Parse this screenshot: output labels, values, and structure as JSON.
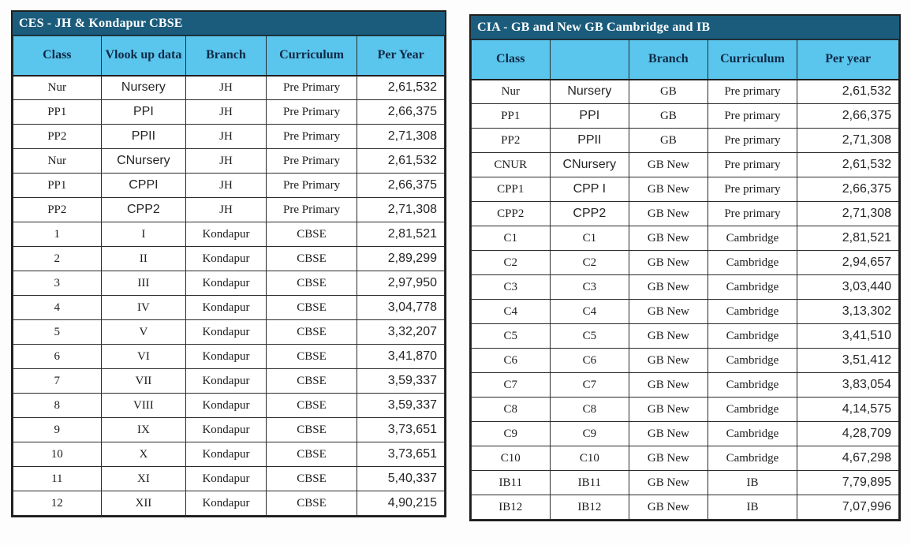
{
  "colors": {
    "title_bar_bg": "#1B5C7C",
    "title_text": "#FFFFFF",
    "header_bg": "#5BC6ED",
    "header_text": "#0E2A47",
    "border": "#2B2B2B",
    "cell_bg": "#FFFFFF"
  },
  "tables": [
    {
      "id": "ces",
      "title": "CES - JH & Kondapur CBSE",
      "columns": [
        "Class",
        "Vlook up data",
        "Branch",
        "Curriculum",
        "Per Year"
      ],
      "rows": [
        {
          "cells": [
            "Nur",
            "Nursery",
            "JH",
            "Pre Primary",
            "2,61,532"
          ],
          "sans_cols": [
            1
          ]
        },
        {
          "cells": [
            "PP1",
            "PPI",
            "JH",
            "Pre Primary",
            "2,66,375"
          ],
          "sans_cols": [
            1
          ]
        },
        {
          "cells": [
            "PP2",
            "PPII",
            "JH",
            "Pre Primary",
            "2,71,308"
          ],
          "sans_cols": [
            1
          ]
        },
        {
          "cells": [
            "Nur",
            "CNursery",
            "JH",
            "Pre Primary",
            "2,61,532"
          ],
          "sans_cols": [
            1
          ]
        },
        {
          "cells": [
            "PP1",
            "CPPI",
            "JH",
            "Pre Primary",
            "2,66,375"
          ],
          "sans_cols": [
            1
          ]
        },
        {
          "cells": [
            "PP2",
            "CPP2",
            "JH",
            "Pre Primary",
            "2,71,308"
          ],
          "sans_cols": [
            1
          ]
        },
        {
          "cells": [
            "1",
            "I",
            "Kondapur",
            "CBSE",
            "2,81,521"
          ],
          "sans_cols": []
        },
        {
          "cells": [
            "2",
            "II",
            "Kondapur",
            "CBSE",
            "2,89,299"
          ],
          "sans_cols": []
        },
        {
          "cells": [
            "3",
            "III",
            "Kondapur",
            "CBSE",
            "2,97,950"
          ],
          "sans_cols": []
        },
        {
          "cells": [
            "4",
            "IV",
            "Kondapur",
            "CBSE",
            "3,04,778"
          ],
          "sans_cols": []
        },
        {
          "cells": [
            "5",
            "V",
            "Kondapur",
            "CBSE",
            "3,32,207"
          ],
          "sans_cols": []
        },
        {
          "cells": [
            "6",
            "VI",
            "Kondapur",
            "CBSE",
            "3,41,870"
          ],
          "sans_cols": []
        },
        {
          "cells": [
            "7",
            "VII",
            "Kondapur",
            "CBSE",
            "3,59,337"
          ],
          "sans_cols": []
        },
        {
          "cells": [
            "8",
            "VIII",
            "Kondapur",
            "CBSE",
            "3,59,337"
          ],
          "sans_cols": []
        },
        {
          "cells": [
            "9",
            "IX",
            "Kondapur",
            "CBSE",
            "3,73,651"
          ],
          "sans_cols": []
        },
        {
          "cells": [
            "10",
            "X",
            "Kondapur",
            "CBSE",
            "3,73,651"
          ],
          "sans_cols": []
        },
        {
          "cells": [
            "11",
            "XI",
            "Kondapur",
            "CBSE",
            "5,40,337"
          ],
          "sans_cols": []
        },
        {
          "cells": [
            "12",
            "XII",
            "Kondapur",
            "CBSE",
            "4,90,215"
          ],
          "sans_cols": []
        }
      ]
    },
    {
      "id": "cia",
      "title": "CIA - GB and New GB Cambridge and IB",
      "columns": [
        "Class",
        "",
        "Branch",
        "Curriculum",
        "Per year"
      ],
      "rows": [
        {
          "cells": [
            "Nur",
            "Nursery",
            "GB",
            "Pre primary",
            "2,61,532"
          ],
          "sans_cols": [
            1
          ]
        },
        {
          "cells": [
            "PP1",
            "PPI",
            "GB",
            "Pre primary",
            "2,66,375"
          ],
          "sans_cols": [
            1
          ]
        },
        {
          "cells": [
            "PP2",
            "PPII",
            "GB",
            "Pre primary",
            "2,71,308"
          ],
          "sans_cols": [
            1
          ]
        },
        {
          "cells": [
            "CNUR",
            "CNursery",
            "GB New",
            "Pre primary",
            "2,61,532"
          ],
          "sans_cols": [
            1
          ]
        },
        {
          "cells": [
            "CPP1",
            "CPP I",
            "GB New",
            "Pre primary",
            "2,66,375"
          ],
          "sans_cols": [
            1
          ]
        },
        {
          "cells": [
            "CPP2",
            "CPP2",
            "GB New",
            "Pre primary",
            "2,71,308"
          ],
          "sans_cols": [
            1
          ]
        },
        {
          "cells": [
            "C1",
            "C1",
            "GB New",
            "Cambridge",
            "2,81,521"
          ],
          "sans_cols": []
        },
        {
          "cells": [
            "C2",
            "C2",
            "GB New",
            "Cambridge",
            "2,94,657"
          ],
          "sans_cols": []
        },
        {
          "cells": [
            "C3",
            "C3",
            "GB New",
            "Cambridge",
            "3,03,440"
          ],
          "sans_cols": []
        },
        {
          "cells": [
            "C4",
            "C4",
            "GB New",
            "Cambridge",
            "3,13,302"
          ],
          "sans_cols": []
        },
        {
          "cells": [
            "C5",
            "C5",
            "GB New",
            "Cambridge",
            "3,41,510"
          ],
          "sans_cols": []
        },
        {
          "cells": [
            "C6",
            "C6",
            "GB New",
            "Cambridge",
            "3,51,412"
          ],
          "sans_cols": []
        },
        {
          "cells": [
            "C7",
            "C7",
            "GB New",
            "Cambridge",
            "3,83,054"
          ],
          "sans_cols": []
        },
        {
          "cells": [
            "C8",
            "C8",
            "GB New",
            "Cambridge",
            "4,14,575"
          ],
          "sans_cols": []
        },
        {
          "cells": [
            "C9",
            "C9",
            "GB New",
            "Cambridge",
            "4,28,709"
          ],
          "sans_cols": []
        },
        {
          "cells": [
            "C10",
            "C10",
            "GB New",
            "Cambridge",
            "4,67,298"
          ],
          "sans_cols": []
        },
        {
          "cells": [
            "IB11",
            "IB11",
            "GB New",
            "IB",
            "7,79,895"
          ],
          "sans_cols": []
        },
        {
          "cells": [
            "IB12",
            "IB12",
            "GB New",
            "IB",
            "7,07,996"
          ],
          "sans_cols": []
        }
      ]
    }
  ]
}
